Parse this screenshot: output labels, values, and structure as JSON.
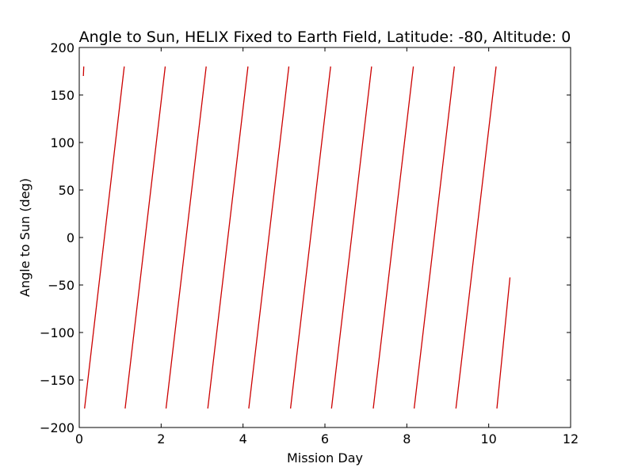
{
  "chart_data": {
    "type": "line",
    "title": "Angle to Sun, HELIX Fixed to Earth Field, Latitude: -80, Altitude: 0",
    "xlabel": "Mission Day",
    "ylabel": "Angle to Sun (deg)",
    "xlim": [
      0,
      12
    ],
    "ylim": [
      -200,
      200
    ],
    "xticks": [
      0,
      2,
      4,
      6,
      8,
      10,
      12
    ],
    "yticks": [
      -200,
      -150,
      -100,
      -50,
      0,
      50,
      100,
      150,
      200
    ],
    "ytick_labels": [
      "−200",
      "−150",
      "−100",
      "−50",
      "0",
      "50",
      "100",
      "150",
      "200"
    ],
    "grid": false,
    "series_color": "#cc0000",
    "series": [
      {
        "segments": [
          [
            [
              0.1,
              170
            ],
            [
              0.11,
              180
            ]
          ],
          [
            [
              0.13,
              -180
            ],
            [
              1.1,
              180
            ]
          ],
          [
            [
              1.12,
              -180
            ],
            [
              2.1,
              180
            ]
          ],
          [
            [
              2.12,
              -180
            ],
            [
              3.1,
              180
            ]
          ],
          [
            [
              3.14,
              -180
            ],
            [
              4.12,
              180
            ]
          ],
          [
            [
              4.14,
              -180
            ],
            [
              5.12,
              180
            ]
          ],
          [
            [
              5.16,
              -180
            ],
            [
              6.14,
              180
            ]
          ],
          [
            [
              6.16,
              -180
            ],
            [
              7.14,
              180
            ]
          ],
          [
            [
              7.18,
              -180
            ],
            [
              8.16,
              180
            ]
          ],
          [
            [
              8.18,
              -180
            ],
            [
              9.16,
              180
            ]
          ],
          [
            [
              9.2,
              -180
            ],
            [
              10.18,
              180
            ]
          ],
          [
            [
              10.2,
              -180
            ],
            [
              10.52,
              -42
            ]
          ]
        ]
      }
    ]
  }
}
